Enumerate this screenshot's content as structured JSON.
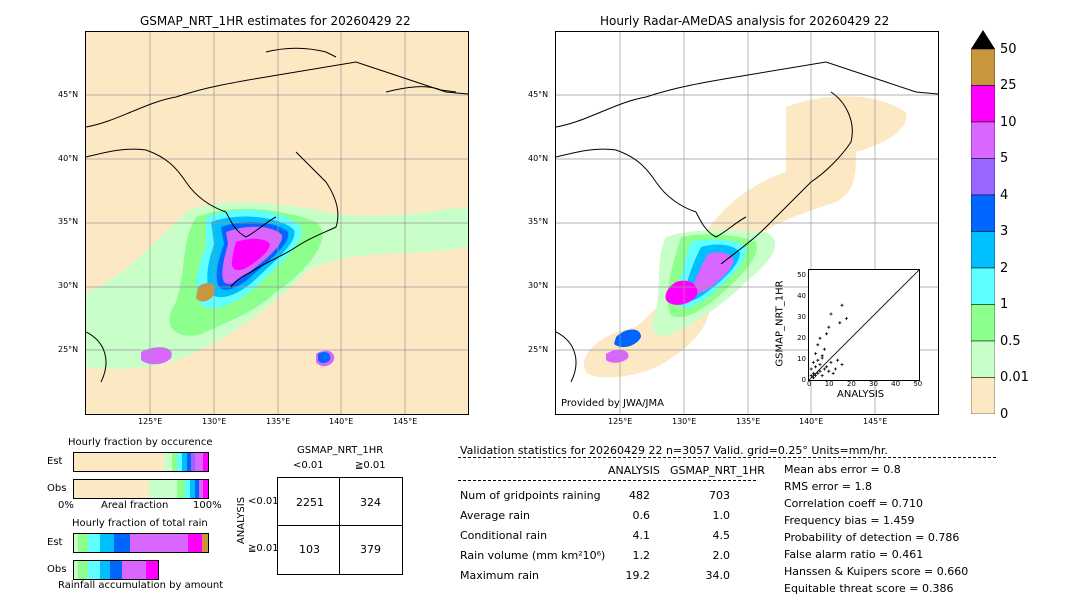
{
  "left_title": "GSMAP_NRT_1HR estimates for 20260429 22",
  "right_title": "Hourly Radar-AMeDAS analysis for 20260429 22",
  "lat_labels": [
    "45°N",
    "40°N",
    "35°N",
    "30°N",
    "25°N"
  ],
  "lon_labels": [
    "125°E",
    "130°E",
    "135°E",
    "140°E",
    "145°E"
  ],
  "provided_by": "Provided by JWA/JMA",
  "colorbar": {
    "labels": [
      "50",
      "25",
      "10",
      "5",
      "4",
      "3",
      "2",
      "1",
      "0.5",
      "0.01",
      "0"
    ],
    "colors": [
      "#c8963c",
      "#ff00ff",
      "#d966ff",
      "#9966ff",
      "#0066ff",
      "#00bfff",
      "#5fffff",
      "#8cff8c",
      "#c8ffc8",
      "#fde8c4"
    ],
    "over_color": "#000000"
  },
  "scatter": {
    "xlabel": "ANALYSIS",
    "ylabel": "GSMAP_NRT_1HR",
    "ticks": [
      "0",
      "10",
      "20",
      "30",
      "40",
      "50"
    ]
  },
  "occurrence": {
    "title": "Hourly fraction by occurence",
    "est_label": "Est",
    "obs_label": "Obs",
    "axis_left": "0%",
    "axis_mid": "Areal fraction",
    "axis_right": "100%"
  },
  "total_rain": {
    "title": "Hourly fraction of total rain",
    "est_label": "Est",
    "obs_label": "Obs",
    "footer": "Rainfall accumulation by amount"
  },
  "contingency": {
    "title": "GSMAP_NRT_1HR",
    "col1": "<0.01",
    "col2": "≧0.01",
    "side_label": "ANALYSIS",
    "row1": "<0.01",
    "row2": "≧0.01",
    "a": "2251",
    "b": "324",
    "c": "103",
    "d": "379"
  },
  "validation": {
    "header": "Validation statistics for 20260429 22  n=3057 Valid. grid=0.25° Units=mm/hr.",
    "col_analysis": "ANALYSIS",
    "col_gsmap": "GSMAP_NRT_1HR",
    "rows": [
      {
        "label": "Num of gridpoints raining",
        "analysis": "482",
        "gsmap": "703"
      },
      {
        "label": "Average rain",
        "analysis": "0.6",
        "gsmap": "1.0"
      },
      {
        "label": "Conditional rain",
        "analysis": "4.1",
        "gsmap": "4.5"
      },
      {
        "label": "Rain volume (mm km²10⁶)",
        "analysis": "1.2",
        "gsmap": "2.0"
      },
      {
        "label": "Maximum rain",
        "analysis": "19.2",
        "gsmap": "34.0"
      }
    ],
    "scores": [
      "Mean abs error =    0.8",
      "RMS error =    1.8",
      "Correlation coeff =  0.710",
      "Frequency bias =  1.459",
      "Probability of detection =  0.786",
      "False alarm ratio =  0.461",
      "Hanssen & Kuipers score =  0.660",
      "Equitable threat score =  0.386"
    ]
  },
  "chart_data": [
    {
      "type": "scatter",
      "xlabel": "ANALYSIS",
      "ylabel": "GSMAP_NRT_1HR",
      "xlim": [
        0,
        50
      ],
      "ylim": [
        0,
        50
      ],
      "points": [
        [
          1,
          2
        ],
        [
          2,
          1
        ],
        [
          2,
          3
        ],
        [
          3,
          2
        ],
        [
          1,
          5
        ],
        [
          4,
          3
        ],
        [
          3,
          6
        ],
        [
          5,
          4
        ],
        [
          6,
          2
        ],
        [
          2,
          8
        ],
        [
          4,
          9
        ],
        [
          5,
          7
        ],
        [
          7,
          5
        ],
        [
          6,
          10
        ],
        [
          8,
          6
        ],
        [
          3,
          12
        ],
        [
          9,
          4
        ],
        [
          10,
          8
        ],
        [
          4,
          16
        ],
        [
          12,
          5
        ],
        [
          7,
          14
        ],
        [
          15,
          7
        ],
        [
          5,
          19
        ],
        [
          8,
          21
        ],
        [
          9,
          24
        ],
        [
          14,
          26
        ],
        [
          10,
          30
        ],
        [
          15,
          34
        ],
        [
          17,
          28
        ],
        [
          6,
          11
        ],
        [
          11,
          3
        ],
        [
          13,
          9
        ]
      ]
    },
    {
      "type": "table",
      "title": "GSMAP_NRT_1HR",
      "columns": [
        "<0.01",
        "≧0.01"
      ],
      "rows": [
        "<0.01",
        "≧0.01"
      ],
      "values": [
        [
          2251,
          324
        ],
        [
          103,
          379
        ]
      ]
    },
    {
      "type": "table",
      "columns": [
        "ANALYSIS",
        "GSMAP_NRT_1HR"
      ],
      "rows": [
        "Num of gridpoints raining",
        "Average rain",
        "Conditional rain",
        "Rain volume (mm km²10⁶)",
        "Maximum rain"
      ],
      "values": [
        [
          482,
          703
        ],
        [
          0.6,
          1.0
        ],
        [
          4.1,
          4.5
        ],
        [
          1.2,
          2.0
        ],
        [
          19.2,
          34.0
        ]
      ]
    }
  ]
}
